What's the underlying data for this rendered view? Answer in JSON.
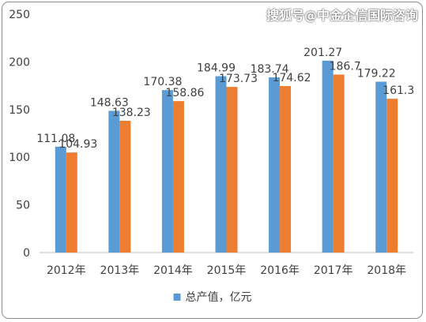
{
  "watermark": "搜狐号@中金企信国际咨询",
  "chart_data": {
    "type": "bar",
    "categories": [
      "2012年",
      "2013年",
      "2014年",
      "2015年",
      "2016年",
      "2017年",
      "2018年"
    ],
    "series": [
      {
        "name": "总产值，亿元",
        "values": [
          111.08,
          148.63,
          170.38,
          184.99,
          183.74,
          201.27,
          179.22
        ],
        "color": "#5b9bd5"
      },
      {
        "name": "",
        "values": [
          104.93,
          138.23,
          158.86,
          173.73,
          174.62,
          186.7,
          161.3
        ],
        "color": "#ed7d31"
      }
    ],
    "ylim": [
      0,
      250
    ],
    "yticks": [
      0,
      50,
      100,
      150,
      200,
      250
    ],
    "grid": false,
    "legend": "bottom",
    "legend_items": [
      "总产值，亿元"
    ]
  }
}
